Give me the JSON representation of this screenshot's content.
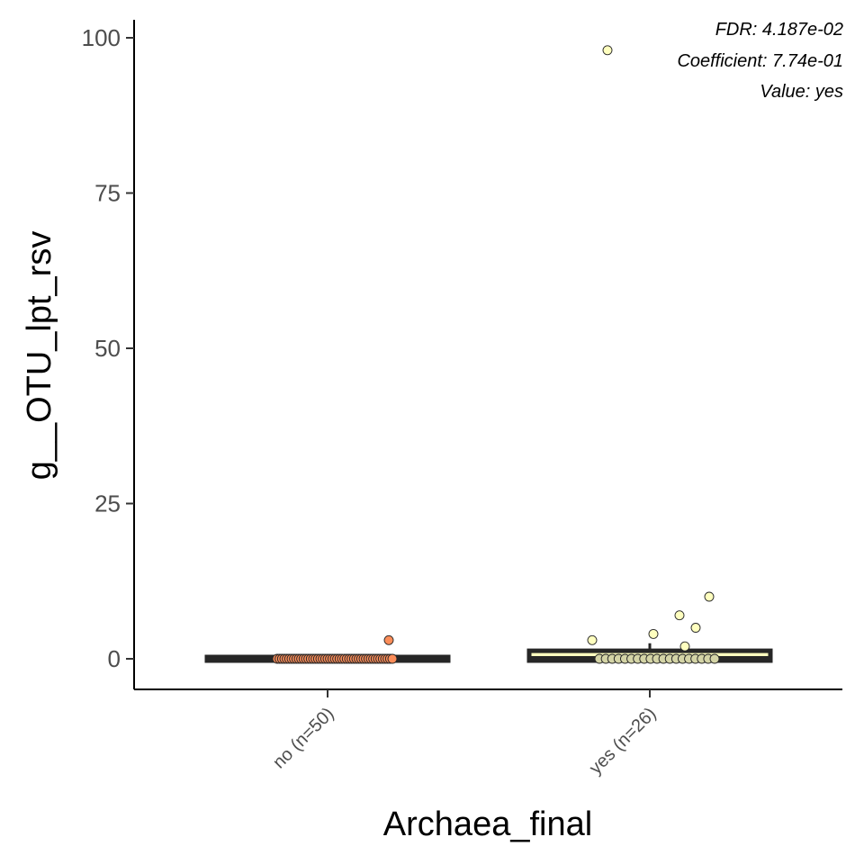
{
  "chart_data": {
    "type": "box",
    "title": "",
    "xlabel": "Archaea_final",
    "ylabel": "g__OTU_lpt_rsv",
    "ylim": [
      -5,
      104
    ],
    "yticks": [
      0,
      25,
      50,
      75,
      100
    ],
    "grid": false,
    "legend": "none",
    "categories": [
      "no (n=50)",
      "yes (n=26)"
    ],
    "annotations": [
      "FDR: 4.187e-02",
      "Coefficient: 7.74e-01",
      "Value: yes"
    ],
    "boxes": [
      {
        "category": "no (n=50)",
        "q1": 0,
        "median": 0,
        "q3": 0,
        "whisker_low": 0,
        "whisker_high": 0,
        "fill": "#fc8d59"
      },
      {
        "category": "yes (n=26)",
        "q1": 0,
        "median": 0,
        "q3": 1,
        "whisker_low": 0,
        "whisker_high": 2.5,
        "fill": "#ffffbf"
      }
    ],
    "points": [
      {
        "category": "no (n=50)",
        "color": "#fc8d59",
        "values": [
          0,
          0,
          0,
          0,
          0,
          0,
          0,
          0,
          0,
          0,
          0,
          0,
          0,
          0,
          0,
          0,
          0,
          0,
          0,
          0,
          0,
          0,
          0,
          0,
          0,
          0,
          0,
          0,
          0,
          0,
          0,
          0,
          0,
          0,
          0,
          0,
          0,
          0,
          0,
          0,
          0,
          0,
          0,
          0,
          0,
          0,
          0,
          0,
          0,
          3
        ]
      },
      {
        "category": "yes (n=26)",
        "color": "#ffffbf",
        "values": [
          98,
          10,
          7,
          5,
          4,
          3,
          2,
          0,
          0,
          0,
          0,
          0,
          0,
          0,
          0,
          0,
          0,
          0,
          0,
          0,
          0,
          0,
          0,
          0,
          0,
          0
        ]
      }
    ]
  }
}
